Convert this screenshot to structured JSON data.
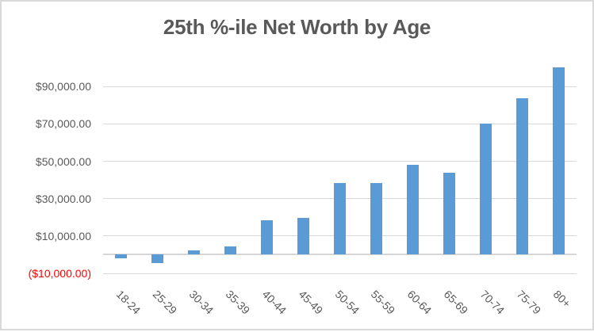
{
  "chart": {
    "colors": {
      "bar": "#5B9BD5",
      "title": "#595959",
      "axis_label": "#595959",
      "negative_label": "#FF0000",
      "gridline": "#D9D9D9",
      "axis_line": "#D6D6D6",
      "border": "#D9D9D9",
      "background": "#FFFFFF"
    }
  },
  "chart_data": {
    "type": "bar",
    "title": "25th %-ile Net Worth by Age",
    "xlabel": "",
    "ylabel": "",
    "categories": [
      "18-24",
      "25-29",
      "30-34",
      "35-39",
      "40-44",
      "45-49",
      "50-54",
      "55-59",
      "60-64",
      "65-69",
      "70-74",
      "75-79",
      "80+"
    ],
    "values": [
      -1900,
      -4300,
      2300,
      4600,
      18600,
      19900,
      38300,
      38300,
      48300,
      43700,
      70000,
      83800,
      100300
    ],
    "ylim": [
      -10000,
      110000
    ],
    "ytick_interval": 20000,
    "yticks": [
      {
        "value": 90000,
        "label": "$90,000.00"
      },
      {
        "value": 70000,
        "label": "$70,000.00"
      },
      {
        "value": 50000,
        "label": "$50,000.00"
      },
      {
        "value": 30000,
        "label": "$30,000.00"
      },
      {
        "value": 10000,
        "label": "$10,000.00"
      },
      {
        "value": -10000,
        "label": "($10,000.00)",
        "negative": true
      }
    ],
    "grid": true,
    "legend": false,
    "x_label_rotation_deg": 45
  }
}
